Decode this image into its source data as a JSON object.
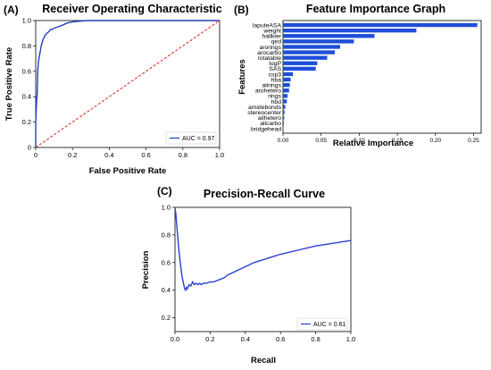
{
  "panels": {
    "a": "(A)",
    "b": "(B)",
    "c": "(C)"
  },
  "chart_data": [
    {
      "type": "line",
      "title": "Receiver Operating Characteristic",
      "xlabel": "False Positive Rate",
      "ylabel": "True Positive Rate",
      "xlim": [
        0,
        1
      ],
      "ylim": [
        0,
        1
      ],
      "x_ticks": [
        "0",
        "0.2",
        "0.4",
        "0.6",
        "0.8",
        "1.0"
      ],
      "y_ticks": [
        "0",
        "0.2",
        "0.4",
        "0.6",
        "0.8",
        "1.0"
      ],
      "legend_position": "lower-right",
      "legend_label": "AUC = 0.97",
      "series": [
        {
          "color": "#1f3fbf",
          "x": [
            0,
            0,
            0.003,
            0.005,
            0.008,
            0.01,
            0.012,
            0.015,
            0.02,
            0.025,
            0.03,
            0.035,
            0.04,
            0.05,
            0.06,
            0.07,
            0.08,
            0.09,
            0.1,
            0.12,
            0.14,
            0.17,
            0.2,
            0.24,
            0.28,
            0.32,
            0.4,
            0.6,
            0.8,
            1.0
          ],
          "y": [
            0,
            0.2,
            0.3,
            0.38,
            0.42,
            0.55,
            0.62,
            0.68,
            0.72,
            0.76,
            0.8,
            0.83,
            0.85,
            0.88,
            0.9,
            0.91,
            0.93,
            0.93,
            0.94,
            0.95,
            0.96,
            0.98,
            0.99,
            0.995,
            1.0,
            1.0,
            1.0,
            1.0,
            1.0,
            1.0
          ]
        },
        {
          "color": "#e03030",
          "style": "dashed",
          "x": [
            0,
            1
          ],
          "y": [
            0,
            1
          ]
        }
      ]
    },
    {
      "type": "bar",
      "orientation": "horizontal",
      "title": "Feature Importance Graph",
      "xlabel": "Relative Importance",
      "ylabel": "Features",
      "xlim": [
        0,
        0.26
      ],
      "x_ticks": [
        "0.00",
        "0.05",
        "0.10",
        "0.15",
        "0.20",
        "0.25"
      ],
      "bar_color": "#1f4fd8",
      "categories": [
        "laputeASA",
        "weight",
        "hallkier",
        "qed",
        "arorings",
        "arocarbo",
        "rotatable",
        "logP",
        "SAS",
        "csp3",
        "hba",
        "alirings",
        "arohetero",
        "rings",
        "hbd",
        "amidebonds",
        "stereocenter",
        "alihetero",
        "alicarbo",
        "bridgehead"
      ],
      "values": [
        0.255,
        0.175,
        0.12,
        0.093,
        0.075,
        0.068,
        0.058,
        0.045,
        0.043,
        0.013,
        0.01,
        0.009,
        0.008,
        0.006,
        0.005,
        0.003,
        0.002,
        0.0015,
        0.001,
        0.0005
      ]
    },
    {
      "type": "line",
      "title": "Precision-Recall Curve",
      "xlabel": "Recall",
      "ylabel": "Precision",
      "xlim": [
        0,
        1
      ],
      "ylim": [
        0.1,
        1.0
      ],
      "x_ticks": [
        "0.0",
        "0.2",
        "0.4",
        "0.6",
        "0.8",
        "1.0"
      ],
      "y_ticks": [
        "0.2",
        "0.4",
        "0.6",
        "0.8",
        "1.0"
      ],
      "legend_position": "lower-right",
      "legend_label": "AUC = 0.61",
      "series": [
        {
          "color": "#2a3fd0",
          "x": [
            0,
            0.005,
            0.01,
            0.015,
            0.02,
            0.03,
            0.04,
            0.05,
            0.055,
            0.06,
            0.065,
            0.07,
            0.08,
            0.09,
            0.1,
            0.11,
            0.12,
            0.13,
            0.14,
            0.15,
            0.16,
            0.18,
            0.2,
            0.22,
            0.24,
            0.26,
            0.28,
            0.3,
            0.35,
            0.4,
            0.45,
            0.5,
            0.55,
            0.6,
            0.7,
            0.8,
            0.9,
            1.0
          ],
          "y": [
            1.0,
            0.95,
            0.87,
            0.8,
            0.72,
            0.6,
            0.5,
            0.44,
            0.41,
            0.4,
            0.42,
            0.41,
            0.44,
            0.43,
            0.46,
            0.44,
            0.45,
            0.44,
            0.45,
            0.44,
            0.45,
            0.45,
            0.46,
            0.46,
            0.47,
            0.48,
            0.49,
            0.51,
            0.54,
            0.57,
            0.6,
            0.62,
            0.64,
            0.66,
            0.69,
            0.72,
            0.74,
            0.76
          ]
        }
      ]
    }
  ]
}
